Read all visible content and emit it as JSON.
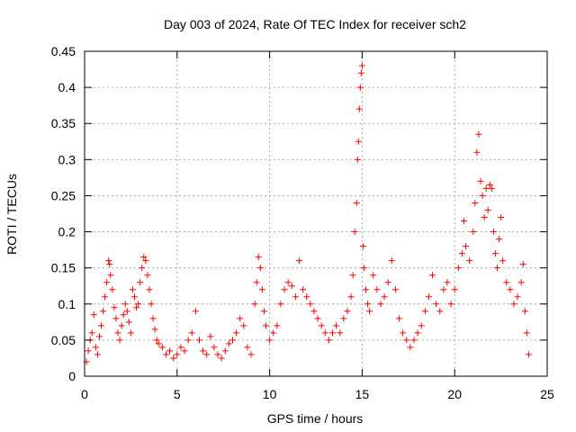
{
  "chart_data": {
    "type": "scatter",
    "title": "Day 003 of 2024, Rate Of TEC Index for receiver sch2",
    "xlabel": "GPS time / hours",
    "ylabel": "ROTI / TECUs",
    "xlim": [
      0,
      25
    ],
    "ylim": [
      0,
      0.45
    ],
    "xticks": [
      0,
      5,
      10,
      15,
      20,
      25
    ],
    "xtick_labels": [
      "0",
      "5",
      "10",
      "15",
      "20",
      "25"
    ],
    "yticks": [
      0,
      0.05,
      0.1,
      0.15,
      0.2,
      0.25,
      0.3,
      0.35,
      0.4,
      0.45
    ],
    "ytick_labels": [
      "0",
      "0.05",
      "0.1",
      "0.15",
      "0.2",
      "0.25",
      "0.3",
      "0.35",
      "0.4",
      "0.45"
    ],
    "grid": true,
    "marker": "+",
    "marker_color": "#ff0000",
    "series": [
      {
        "name": "ROTI",
        "points": [
          [
            0.1,
            0.02
          ],
          [
            0.2,
            0.035
          ],
          [
            0.3,
            0.05
          ],
          [
            0.4,
            0.06
          ],
          [
            0.5,
            0.085
          ],
          [
            0.6,
            0.04
          ],
          [
            0.7,
            0.03
          ],
          [
            0.8,
            0.055
          ],
          [
            0.9,
            0.07
          ],
          [
            1.0,
            0.09
          ],
          [
            1.1,
            0.11
          ],
          [
            1.2,
            0.13
          ],
          [
            1.3,
            0.16
          ],
          [
            1.35,
            0.155
          ],
          [
            1.4,
            0.14
          ],
          [
            1.5,
            0.12
          ],
          [
            1.6,
            0.095
          ],
          [
            1.7,
            0.08
          ],
          [
            1.8,
            0.06
          ],
          [
            1.9,
            0.05
          ],
          [
            2.0,
            0.07
          ],
          [
            2.1,
            0.085
          ],
          [
            2.2,
            0.1
          ],
          [
            2.3,
            0.09
          ],
          [
            2.4,
            0.075
          ],
          [
            2.5,
            0.06
          ],
          [
            2.6,
            0.12
          ],
          [
            2.7,
            0.11
          ],
          [
            2.8,
            0.095
          ],
          [
            2.9,
            0.1
          ],
          [
            3.0,
            0.13
          ],
          [
            3.1,
            0.15
          ],
          [
            3.2,
            0.165
          ],
          [
            3.3,
            0.16
          ],
          [
            3.4,
            0.14
          ],
          [
            3.5,
            0.12
          ],
          [
            3.6,
            0.1
          ],
          [
            3.7,
            0.08
          ],
          [
            3.8,
            0.065
          ],
          [
            3.9,
            0.05
          ],
          [
            4.0,
            0.045
          ],
          [
            4.2,
            0.04
          ],
          [
            4.4,
            0.03
          ],
          [
            4.6,
            0.035
          ],
          [
            4.8,
            0.025
          ],
          [
            5.0,
            0.03
          ],
          [
            5.2,
            0.04
          ],
          [
            5.4,
            0.035
          ],
          [
            5.6,
            0.05
          ],
          [
            5.8,
            0.06
          ],
          [
            6.0,
            0.09
          ],
          [
            6.2,
            0.05
          ],
          [
            6.4,
            0.035
          ],
          [
            6.6,
            0.03
          ],
          [
            6.8,
            0.055
          ],
          [
            7.0,
            0.04
          ],
          [
            7.2,
            0.03
          ],
          [
            7.4,
            0.025
          ],
          [
            7.6,
            0.035
          ],
          [
            7.8,
            0.045
          ],
          [
            8.0,
            0.05
          ],
          [
            8.2,
            0.06
          ],
          [
            8.4,
            0.08
          ],
          [
            8.6,
            0.07
          ],
          [
            8.8,
            0.04
          ],
          [
            9.0,
            0.03
          ],
          [
            9.2,
            0.1
          ],
          [
            9.3,
            0.13
          ],
          [
            9.4,
            0.165
          ],
          [
            9.5,
            0.15
          ],
          [
            9.6,
            0.12
          ],
          [
            9.7,
            0.09
          ],
          [
            9.8,
            0.07
          ],
          [
            10.0,
            0.05
          ],
          [
            10.2,
            0.06
          ],
          [
            10.4,
            0.07
          ],
          [
            10.6,
            0.1
          ],
          [
            10.8,
            0.12
          ],
          [
            11.0,
            0.13
          ],
          [
            11.2,
            0.125
          ],
          [
            11.4,
            0.11
          ],
          [
            11.6,
            0.16
          ],
          [
            11.8,
            0.12
          ],
          [
            12.0,
            0.11
          ],
          [
            12.2,
            0.1
          ],
          [
            12.4,
            0.09
          ],
          [
            12.6,
            0.08
          ],
          [
            12.8,
            0.07
          ],
          [
            13.0,
            0.06
          ],
          [
            13.2,
            0.05
          ],
          [
            13.4,
            0.06
          ],
          [
            13.6,
            0.07
          ],
          [
            13.8,
            0.06
          ],
          [
            14.0,
            0.08
          ],
          [
            14.2,
            0.09
          ],
          [
            14.4,
            0.11
          ],
          [
            14.5,
            0.14
          ],
          [
            14.6,
            0.2
          ],
          [
            14.7,
            0.24
          ],
          [
            14.75,
            0.3
          ],
          [
            14.8,
            0.325
          ],
          [
            14.85,
            0.37
          ],
          [
            14.9,
            0.4
          ],
          [
            14.95,
            0.42
          ],
          [
            15.0,
            0.43
          ],
          [
            15.05,
            0.18
          ],
          [
            15.1,
            0.15
          ],
          [
            15.2,
            0.12
          ],
          [
            15.3,
            0.1
          ],
          [
            15.4,
            0.09
          ],
          [
            15.6,
            0.14
          ],
          [
            15.8,
            0.12
          ],
          [
            16.0,
            0.1
          ],
          [
            16.2,
            0.11
          ],
          [
            16.4,
            0.13
          ],
          [
            16.6,
            0.16
          ],
          [
            16.8,
            0.12
          ],
          [
            17.0,
            0.08
          ],
          [
            17.2,
            0.06
          ],
          [
            17.4,
            0.05
          ],
          [
            17.6,
            0.04
          ],
          [
            17.8,
            0.05
          ],
          [
            18.0,
            0.06
          ],
          [
            18.2,
            0.07
          ],
          [
            18.4,
            0.09
          ],
          [
            18.6,
            0.11
          ],
          [
            18.8,
            0.14
          ],
          [
            19.0,
            0.1
          ],
          [
            19.2,
            0.09
          ],
          [
            19.4,
            0.12
          ],
          [
            19.6,
            0.13
          ],
          [
            19.8,
            0.1
          ],
          [
            20.0,
            0.12
          ],
          [
            20.2,
            0.15
          ],
          [
            20.4,
            0.17
          ],
          [
            20.5,
            0.215
          ],
          [
            20.6,
            0.18
          ],
          [
            20.8,
            0.16
          ],
          [
            21.0,
            0.2
          ],
          [
            21.1,
            0.24
          ],
          [
            21.2,
            0.31
          ],
          [
            21.3,
            0.335
          ],
          [
            21.4,
            0.27
          ],
          [
            21.5,
            0.25
          ],
          [
            21.6,
            0.22
          ],
          [
            21.7,
            0.26
          ],
          [
            21.8,
            0.23
          ],
          [
            21.9,
            0.265
          ],
          [
            22.0,
            0.26
          ],
          [
            22.1,
            0.2
          ],
          [
            22.2,
            0.17
          ],
          [
            22.3,
            0.15
          ],
          [
            22.4,
            0.19
          ],
          [
            22.5,
            0.22
          ],
          [
            22.6,
            0.16
          ],
          [
            22.8,
            0.13
          ],
          [
            23.0,
            0.12
          ],
          [
            23.2,
            0.1
          ],
          [
            23.4,
            0.11
          ],
          [
            23.6,
            0.13
          ],
          [
            23.7,
            0.155
          ],
          [
            23.8,
            0.09
          ],
          [
            23.9,
            0.06
          ],
          [
            24.0,
            0.03
          ]
        ]
      }
    ]
  }
}
